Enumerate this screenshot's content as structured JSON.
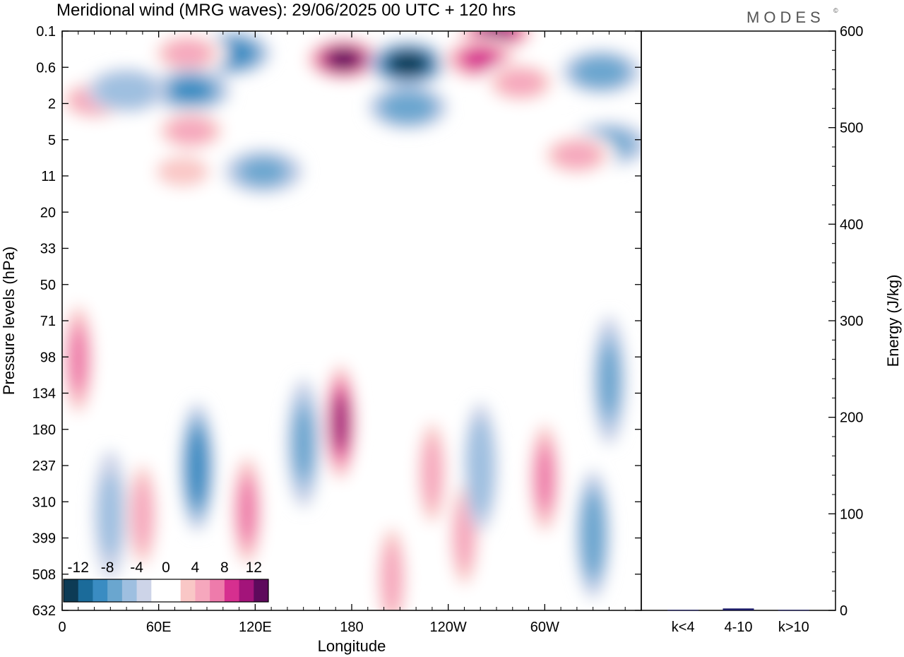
{
  "header": {
    "title": "Meridional wind (MRG waves):  29/06/2025  00 UTC  + 120 hrs",
    "brand": "MODES",
    "brand_mark": "©"
  },
  "chart_data": [
    {
      "type": "heatmap",
      "title": "Meridional wind (MRG waves):  29/06/2025  00 UTC  + 120 hrs",
      "xlabel": "Longitude",
      "ylabel": "Pressure levels (hPa)",
      "x_ticks": [
        "0",
        "60E",
        "120E",
        "180",
        "120W",
        "60W"
      ],
      "x_range_deg": [
        0,
        360
      ],
      "y_ticks": [
        "0.1",
        "0.6",
        "2",
        "5",
        "11",
        "20",
        "33",
        "50",
        "71",
        "98",
        "134",
        "180",
        "237",
        "310",
        "399",
        "508",
        "632"
      ],
      "colorbar": {
        "tick_labels": [
          "-12",
          "-8",
          "-4",
          "0",
          "4",
          "8",
          "12"
        ],
        "tick_values": [
          -12,
          -8,
          -4,
          0,
          4,
          8,
          12
        ],
        "levels": [
          -14,
          -12,
          -10,
          -8,
          -6,
          -4,
          -2,
          2,
          4,
          6,
          8,
          10,
          12,
          14
        ],
        "colors": [
          "#0d3b55",
          "#1b6b9a",
          "#3a8cc2",
          "#6aa6cf",
          "#9ebfe0",
          "#cdd4e8",
          "#ffffff",
          "#ffffff",
          "#f9c7c6",
          "#f6a7bd",
          "#ee7bab",
          "#d62f8f",
          "#a3147a",
          "#5e0a5c"
        ]
      },
      "features": [
        {
          "lon": 173,
          "p": 170,
          "value": 13
        },
        {
          "lon": 10,
          "p": 100,
          "value": 9
        },
        {
          "lon": 84,
          "p": 240,
          "value": -10
        },
        {
          "lon": 115,
          "p": 330,
          "value": 9
        },
        {
          "lon": 150,
          "p": 200,
          "value": -7
        },
        {
          "lon": 300,
          "p": 260,
          "value": 8
        },
        {
          "lon": 330,
          "p": 390,
          "value": -8
        },
        {
          "lon": 340,
          "p": 120,
          "value": -7
        },
        {
          "lon": 30,
          "p": 340,
          "value": -5
        },
        {
          "lon": 50,
          "p": 340,
          "value": 6
        },
        {
          "lon": 205,
          "p": 520,
          "value": 6
        },
        {
          "lon": 230,
          "p": 250,
          "value": 6
        },
        {
          "lon": 250,
          "p": 390,
          "value": 7
        },
        {
          "lon": 260,
          "p": 240,
          "value": -6
        },
        {
          "lon": 175,
          "p": 0.4,
          "value": 14
        },
        {
          "lon": 215,
          "p": 0.5,
          "value": -14
        },
        {
          "lon": 270,
          "p": 0.1,
          "value": 12
        },
        {
          "lon": 260,
          "p": 0.4,
          "value": 10
        },
        {
          "lon": 105,
          "p": 0.3,
          "value": -10
        },
        {
          "lon": 78,
          "p": 0.3,
          "value": 7
        },
        {
          "lon": 80,
          "p": 1.3,
          "value": -9
        },
        {
          "lon": 20,
          "p": 1.8,
          "value": 7
        },
        {
          "lon": 215,
          "p": 2.2,
          "value": -8
        },
        {
          "lon": 335,
          "p": 0.7,
          "value": -8
        },
        {
          "lon": 340,
          "p": 5.5,
          "value": -7
        },
        {
          "lon": 285,
          "p": 1.0,
          "value": 6
        },
        {
          "lon": 80,
          "p": 4,
          "value": 6
        },
        {
          "lon": 75,
          "p": 10,
          "value": 4
        },
        {
          "lon": 125,
          "p": 10,
          "value": -7
        },
        {
          "lon": 320,
          "p": 7,
          "value": 6
        },
        {
          "lon": 40,
          "p": 1.3,
          "value": -6
        },
        {
          "lon": 95,
          "p": 25,
          "value": 2
        },
        {
          "lon": 50,
          "p": 20,
          "value": -2
        }
      ]
    },
    {
      "type": "bar",
      "categories": [
        "k<4",
        "4-10",
        "k>10"
      ],
      "values": [
        0.5,
        2,
        0.5
      ],
      "ylabel": "Energy (J/kg)",
      "ylim": [
        0,
        600
      ],
      "y_ticks": [
        0,
        100,
        200,
        300,
        400,
        500,
        600
      ],
      "bar_color": "#1a1a66"
    }
  ]
}
